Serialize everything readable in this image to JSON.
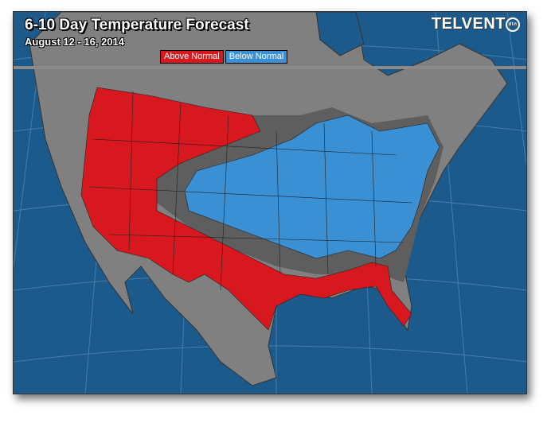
{
  "header": {
    "title": "6-10 Day Temperature Forecast",
    "subtitle": "August 12 - 16, 2014",
    "logo_text": "TELVENT",
    "logo_badge": "dtn"
  },
  "legend": [
    {
      "label": "Above Normal",
      "color": "#d7181e"
    },
    {
      "label": "Below Normal",
      "color": "#3b8fd3"
    }
  ],
  "colors": {
    "ocean": "#1d5a8c",
    "land": "#808080",
    "near_normal": "#5e5e5e",
    "above_normal": "#d7181e",
    "below_normal": "#3b8fd3"
  }
}
